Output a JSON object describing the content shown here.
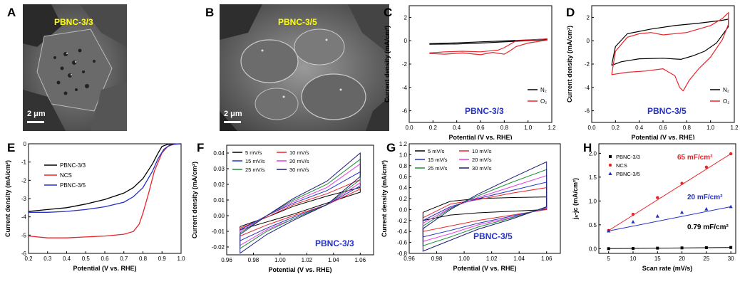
{
  "colors": {
    "black": "#000000",
    "red": "#e8252a",
    "blue": "#2430c8",
    "green": "#1f8f3a",
    "magenta": "#e639e6",
    "navy": "#1a1a7a",
    "yellow": "#ffff00"
  },
  "panels": {
    "A": {
      "letter": "A",
      "sample": "PBNC-3/3",
      "scale": "2 μm"
    },
    "B": {
      "letter": "B",
      "sample": "PBNC-3/5",
      "scale": "2 μm"
    },
    "C": {
      "letter": "C"
    },
    "D": {
      "letter": "D"
    },
    "E": {
      "letter": "E"
    },
    "F": {
      "letter": "F"
    },
    "G": {
      "letter": "G"
    },
    "H": {
      "letter": "H"
    }
  },
  "chart_data": [
    {
      "id": "C",
      "type": "line",
      "xlabel": "Potential (V vs. RHE)",
      "ylabel": "Current density (mA/cm²)",
      "xlim": [
        0.0,
        1.2
      ],
      "ylim": [
        -7,
        3
      ],
      "xticks": [
        0.0,
        0.2,
        0.4,
        0.6,
        0.8,
        1.0,
        1.2
      ],
      "yticks": [
        2,
        0,
        -2,
        -4,
        -6
      ],
      "annotation": "PBNC-3/3",
      "legend_position": "bottom-right",
      "series": [
        {
          "name": "N₂",
          "color": "#000000",
          "x": [
            0.17,
            0.4,
            0.6,
            0.8,
            1.0,
            1.16,
            1.16,
            1.0,
            0.8,
            0.6,
            0.4,
            0.17
          ],
          "y": [
            -0.25,
            -0.18,
            -0.1,
            -0.02,
            0.07,
            0.15,
            0.1,
            0.0,
            -0.1,
            -0.2,
            -0.28,
            -0.3
          ]
        },
        {
          "name": "O₂",
          "color": "#e8252a",
          "x": [
            0.17,
            0.3,
            0.45,
            0.6,
            0.75,
            0.8,
            0.85,
            0.9,
            1.0,
            1.16,
            1.16,
            1.0,
            0.9,
            0.85,
            0.8,
            0.7,
            0.6,
            0.45,
            0.3,
            0.17
          ],
          "y": [
            -1.05,
            -0.95,
            -0.9,
            -0.95,
            -0.8,
            -0.6,
            -0.3,
            0.0,
            0.05,
            0.15,
            0.05,
            -0.2,
            -0.5,
            -0.85,
            -1.15,
            -1.0,
            -1.2,
            -1.05,
            -1.15,
            -1.1
          ]
        }
      ]
    },
    {
      "id": "D",
      "type": "line",
      "xlabel": "Potential (V vs. RHE)",
      "ylabel": "Current density (mA/cm²)",
      "xlim": [
        0.0,
        1.2
      ],
      "ylim": [
        -7,
        3
      ],
      "xticks": [
        0.0,
        0.2,
        0.4,
        0.6,
        0.8,
        1.0,
        1.2
      ],
      "yticks": [
        2,
        0,
        -2,
        -4,
        -6
      ],
      "annotation": "PBNC-3/5",
      "legend_position": "bottom-right",
      "series": [
        {
          "name": "N₂",
          "color": "#000000",
          "x": [
            0.17,
            0.2,
            0.3,
            0.5,
            0.7,
            0.9,
            1.1,
            1.15,
            1.15,
            1.05,
            0.95,
            0.85,
            0.75,
            0.6,
            0.4,
            0.25,
            0.17,
            0.17
          ],
          "y": [
            -2.0,
            -0.5,
            0.6,
            1.0,
            1.3,
            1.5,
            1.75,
            1.85,
            1.2,
            -0.2,
            -0.9,
            -1.3,
            -1.6,
            -1.5,
            -1.55,
            -1.8,
            -2.1,
            -2.0
          ]
        },
        {
          "name": "O₂",
          "color": "#e8252a",
          "x": [
            0.17,
            0.2,
            0.3,
            0.4,
            0.5,
            0.6,
            0.8,
            1.0,
            1.1,
            1.15,
            1.15,
            1.1,
            1.0,
            0.9,
            0.82,
            0.77,
            0.74,
            0.7,
            0.6,
            0.45,
            0.3,
            0.17,
            0.17
          ],
          "y": [
            -2.8,
            -0.9,
            0.3,
            0.6,
            0.7,
            0.5,
            0.7,
            1.3,
            1.9,
            2.4,
            1.4,
            0.1,
            -1.4,
            -2.4,
            -3.4,
            -4.3,
            -4.0,
            -3.0,
            -2.4,
            -2.6,
            -2.7,
            -2.9,
            -2.8
          ]
        }
      ]
    },
    {
      "id": "E",
      "type": "line",
      "xlabel": "Potential (V vs. RHE)",
      "ylabel": "Current density (mA/cm²)",
      "xlim": [
        0.2,
        1.0
      ],
      "ylim": [
        -6,
        0
      ],
      "xticks": [
        0.2,
        0.3,
        0.4,
        0.5,
        0.6,
        0.7,
        0.8,
        0.9,
        1.0
      ],
      "yticks": [
        0,
        -1,
        -2,
        -3,
        -4,
        -5,
        -6
      ],
      "legend_position": "top-left",
      "series": [
        {
          "name": "PBNC-3/3",
          "color": "#000000",
          "x": [
            0.2,
            0.3,
            0.4,
            0.5,
            0.6,
            0.7,
            0.75,
            0.8,
            0.85,
            0.88,
            0.9,
            0.93,
            0.95,
            1.0
          ],
          "y": [
            -3.7,
            -3.6,
            -3.5,
            -3.3,
            -3.05,
            -2.7,
            -2.4,
            -1.9,
            -1.1,
            -0.5,
            -0.15,
            -0.03,
            -0.01,
            0.0
          ]
        },
        {
          "name": "NCS",
          "color": "#e8252a",
          "x": [
            0.2,
            0.3,
            0.4,
            0.5,
            0.6,
            0.7,
            0.75,
            0.78,
            0.8,
            0.83,
            0.86,
            0.9,
            0.93,
            0.96,
            1.0
          ],
          "y": [
            -5.05,
            -5.15,
            -5.15,
            -5.1,
            -5.05,
            -4.95,
            -4.8,
            -4.4,
            -3.8,
            -2.7,
            -1.5,
            -0.5,
            -0.15,
            -0.03,
            0.0
          ]
        },
        {
          "name": "PBNC-3/5",
          "color": "#2430c8",
          "x": [
            0.2,
            0.3,
            0.4,
            0.5,
            0.6,
            0.7,
            0.75,
            0.8,
            0.85,
            0.88,
            0.91,
            0.94,
            0.97,
            1.0
          ],
          "y": [
            -3.75,
            -3.75,
            -3.7,
            -3.6,
            -3.45,
            -3.2,
            -2.9,
            -2.4,
            -1.5,
            -0.8,
            -0.3,
            -0.08,
            -0.02,
            0.0
          ]
        }
      ]
    },
    {
      "id": "F",
      "type": "line",
      "xlabel": "Potential (V vs. RHE)",
      "ylabel": "Current density (mA/cm²)",
      "xlim": [
        0.96,
        1.07
      ],
      "ylim": [
        -0.025,
        0.045
      ],
      "xticks": [
        0.96,
        0.98,
        1.0,
        1.02,
        1.04,
        1.06
      ],
      "yticks": [
        0.04,
        0.03,
        0.02,
        0.01,
        0.0,
        -0.01,
        -0.02
      ],
      "annotation": "PBNC-3/3",
      "legend_position": "top",
      "series": [
        {
          "name": "5 mV/s",
          "color": "#000000",
          "top": [
            -0.007,
            -0.001,
            0.006,
            0.0125,
            0.018
          ],
          "bottom": [
            -0.009,
            -0.004,
            0.001,
            0.008,
            0.015
          ],
          "amp": 1
        },
        {
          "name": "10 mV/s",
          "color": "#e8252a",
          "top": [
            -0.008,
            -0.001,
            0.007,
            0.014,
            0.023
          ],
          "bottom": [
            -0.013,
            -0.006,
            0.0,
            0.007,
            0.017
          ],
          "amp": 1
        },
        {
          "name": "15 mV/s",
          "color": "#2430c8",
          "top": [
            -0.009,
            0.0,
            0.008,
            0.016,
            0.028
          ],
          "bottom": [
            -0.016,
            -0.008,
            -0.001,
            0.007,
            0.019
          ],
          "amp": 1
        },
        {
          "name": "20 mV/s",
          "color": "#e639e6",
          "top": [
            -0.01,
            0.0,
            0.009,
            0.018,
            0.033
          ],
          "bottom": [
            -0.019,
            -0.009,
            -0.002,
            0.007,
            0.021
          ],
          "amp": 1
        },
        {
          "name": "25 mV/s",
          "color": "#1f8f3a",
          "top": [
            -0.011,
            0.0,
            0.01,
            0.02,
            0.036
          ],
          "bottom": [
            -0.021,
            -0.01,
            -0.002,
            0.007,
            0.023
          ],
          "amp": 1
        },
        {
          "name": "30 mV/s",
          "color": "#1a1a7a",
          "top": [
            -0.012,
            0.0,
            0.011,
            0.022,
            0.04
          ],
          "bottom": [
            -0.024,
            -0.012,
            -0.003,
            0.007,
            0.025
          ],
          "amp": 1
        }
      ]
    },
    {
      "id": "G",
      "type": "line",
      "xlabel": "Potential (V vs. RHE)",
      "ylabel": "Current density (mA/cm²)",
      "xlim": [
        0.96,
        1.07
      ],
      "ylim": [
        -0.8,
        1.2
      ],
      "xticks": [
        0.96,
        0.98,
        1.0,
        1.02,
        1.04,
        1.06
      ],
      "yticks": [
        1.2,
        1.0,
        0.8,
        0.6,
        0.4,
        0.2,
        0.0,
        -0.2,
        -0.4,
        -0.6,
        -0.8
      ],
      "annotation": "PBNC-3/5",
      "legend_position": "top",
      "series": [
        {
          "name": "5 mV/s",
          "color": "#000000",
          "top": [
            -0.05,
            0.15,
            0.2,
            0.22,
            0.23
          ],
          "bottom": [
            -0.2,
            -0.1,
            -0.06,
            -0.03,
            0.0
          ]
        },
        {
          "name": "10 mV/s",
          "color": "#e8252a",
          "top": [
            -0.15,
            0.1,
            0.18,
            0.3,
            0.4
          ],
          "bottom": [
            -0.4,
            -0.3,
            -0.2,
            -0.1,
            0.0
          ]
        },
        {
          "name": "15 mV/s",
          "color": "#2430c8",
          "top": [
            -0.2,
            0.05,
            0.2,
            0.35,
            0.5
          ],
          "bottom": [
            -0.5,
            -0.38,
            -0.25,
            -0.12,
            0.02
          ]
        },
        {
          "name": "20 mV/s",
          "color": "#e639e6",
          "top": [
            -0.25,
            0.03,
            0.22,
            0.42,
            0.62
          ],
          "bottom": [
            -0.58,
            -0.44,
            -0.28,
            -0.14,
            0.03
          ]
        },
        {
          "name": "25 mV/s",
          "color": "#1f8f3a",
          "top": [
            -0.3,
            0.02,
            0.25,
            0.5,
            0.73
          ],
          "bottom": [
            -0.66,
            -0.5,
            -0.32,
            -0.15,
            0.04
          ]
        },
        {
          "name": "30 mV/s",
          "color": "#1a1a7a",
          "top": [
            -0.35,
            0.0,
            0.28,
            0.58,
            0.87
          ],
          "bottom": [
            -0.76,
            -0.56,
            -0.36,
            -0.17,
            0.05
          ]
        }
      ]
    },
    {
      "id": "H",
      "type": "scatter",
      "xlabel": "Scan rate (mV/s)",
      "ylabel": "jₐ-jc (mA/cm²)",
      "xlim": [
        3,
        31
      ],
      "ylim": [
        -0.1,
        2.2
      ],
      "xticks": [
        5,
        10,
        15,
        20,
        25,
        30
      ],
      "yticks": [
        0.0,
        0.5,
        1.0,
        1.5,
        2.0
      ],
      "legend_position": "top-left",
      "annotations": [
        {
          "text": "65 mF/cm²",
          "color": "#e8252a"
        },
        {
          "text": "20 mF/cm²",
          "color": "#2430c8"
        },
        {
          "text": "0.79 mF/cm²",
          "color": "#000000"
        }
      ],
      "series": [
        {
          "name": "PBNC-3/3",
          "color": "#000000",
          "marker": "square",
          "x": [
            5,
            10,
            15,
            20,
            25,
            30
          ],
          "y": [
            0.0,
            0.005,
            0.01,
            0.015,
            0.02,
            0.024
          ]
        },
        {
          "name": "NCS",
          "color": "#e8252a",
          "marker": "circle",
          "x": [
            5,
            10,
            15,
            20,
            25,
            30
          ],
          "y": [
            0.38,
            0.72,
            1.07,
            1.37,
            1.71,
            1.99
          ]
        },
        {
          "name": "PBNC-3/5",
          "color": "#2430c8",
          "marker": "triangle",
          "x": [
            5,
            10,
            15,
            20,
            25,
            30
          ],
          "y": [
            0.37,
            0.56,
            0.68,
            0.76,
            0.83,
            0.88
          ]
        }
      ]
    }
  ]
}
